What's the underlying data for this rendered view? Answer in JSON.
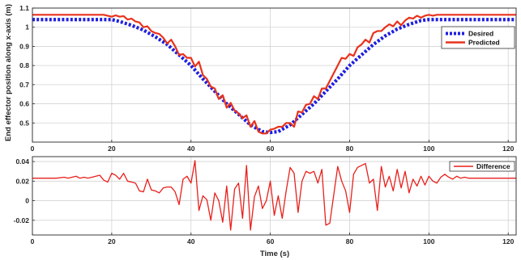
{
  "colors": {
    "desired": "#1f1fe0",
    "predicted": "#e8321c",
    "difference": "#e8201c",
    "grid": "#d2d2d2",
    "axis": "#262626",
    "background": "#ffffff"
  },
  "chart_data": [
    {
      "type": "line",
      "title": "",
      "xlabel": "",
      "ylabel": "End effector position along x-axis (m)",
      "xlim": [
        0,
        122
      ],
      "ylim": [
        0.4,
        1.1
      ],
      "xticks": [
        0,
        20,
        40,
        60,
        80,
        100,
        120
      ],
      "yticks": [
        0.5,
        0.6,
        0.7,
        0.8,
        0.9,
        1,
        1.1
      ],
      "xtick_labels": [
        "0",
        "20",
        "40",
        "60",
        "80",
        "100",
        "120"
      ],
      "ytick_labels": [
        "0.5",
        "0.6",
        "0.7",
        "0.8",
        "0.9",
        "1",
        "1.1"
      ],
      "grid": true,
      "legend_position": "upper right",
      "series": [
        {
          "name": "Desired",
          "style": "dotted",
          "x": [
            0,
            10,
            20,
            22,
            25,
            28,
            31,
            34,
            37,
            40,
            43,
            46,
            49,
            52,
            55,
            58,
            60,
            62,
            65,
            68,
            71,
            74,
            77,
            80,
            83,
            86,
            89,
            92,
            95,
            98,
            100,
            110,
            122
          ],
          "y": [
            1.04,
            1.04,
            1.04,
            1.03,
            1.01,
            0.985,
            0.95,
            0.91,
            0.855,
            0.8,
            0.73,
            0.665,
            0.6,
            0.545,
            0.49,
            0.455,
            0.45,
            0.455,
            0.49,
            0.545,
            0.6,
            0.665,
            0.73,
            0.8,
            0.855,
            0.91,
            0.955,
            0.99,
            1.015,
            1.035,
            1.04,
            1.04,
            1.04
          ]
        },
        {
          "name": "Predicted",
          "style": "solid",
          "x": [
            0,
            5,
            10,
            15,
            18,
            20,
            21,
            22,
            23,
            24,
            25,
            26,
            27,
            28,
            29,
            30,
            31,
            32,
            33,
            34,
            35,
            36,
            37,
            38,
            39,
            40,
            41,
            42,
            43,
            44,
            45,
            46,
            47,
            48,
            49,
            50,
            51,
            52,
            53,
            54,
            55,
            56,
            57,
            58,
            59,
            60,
            61,
            62,
            63,
            64,
            65,
            66,
            67,
            68,
            69,
            70,
            71,
            72,
            73,
            74,
            75,
            76,
            77,
            78,
            79,
            80,
            81,
            82,
            83,
            84,
            85,
            86,
            87,
            88,
            89,
            90,
            91,
            92,
            93,
            94,
            95,
            96,
            97,
            98,
            99,
            100,
            101,
            102,
            105,
            110,
            115,
            122
          ],
          "y": [
            1.065,
            1.065,
            1.065,
            1.065,
            1.065,
            1.055,
            1.062,
            1.055,
            1.058,
            1.04,
            1.045,
            1.03,
            1.025,
            1.0,
            1.005,
            0.98,
            0.97,
            0.965,
            0.945,
            0.915,
            0.935,
            0.9,
            0.855,
            0.86,
            0.84,
            0.84,
            0.795,
            0.82,
            0.75,
            0.73,
            0.69,
            0.68,
            0.625,
            0.645,
            0.58,
            0.605,
            0.565,
            0.55,
            0.525,
            0.54,
            0.48,
            0.51,
            0.455,
            0.445,
            0.445,
            0.465,
            0.47,
            0.48,
            0.48,
            0.5,
            0.5,
            0.48,
            0.56,
            0.555,
            0.595,
            0.6,
            0.64,
            0.625,
            0.68,
            0.68,
            0.72,
            0.76,
            0.8,
            0.84,
            0.835,
            0.86,
            0.85,
            0.895,
            0.91,
            0.935,
            0.92,
            0.97,
            0.98,
            0.98,
            1.0,
            1.015,
            1.005,
            1.03,
            1.01,
            1.035,
            1.05,
            1.045,
            1.06,
            1.05,
            1.06,
            1.065,
            1.06,
            1.065,
            1.065,
            1.065,
            1.065,
            1.065
          ]
        }
      ]
    },
    {
      "type": "line",
      "title": "",
      "xlabel": "Time (s)",
      "ylabel": "",
      "xlim": [
        0,
        122
      ],
      "ylim": [
        -0.035,
        0.045
      ],
      "xticks": [
        0,
        20,
        40,
        60,
        80,
        100,
        120
      ],
      "yticks": [
        -0.02,
        0,
        0.02,
        0.04
      ],
      "xtick_labels": [
        "0",
        "20",
        "40",
        "60",
        "80",
        "100",
        "120"
      ],
      "ytick_labels": [
        "-0.02",
        "0",
        "0.02",
        "0.04"
      ],
      "grid": true,
      "legend_position": "upper right",
      "series": [
        {
          "name": "Difference",
          "style": "solid",
          "x": [
            0,
            3,
            6,
            8,
            9,
            10,
            11,
            12,
            13,
            14,
            15,
            16,
            17,
            18,
            19,
            20,
            21,
            22,
            23,
            24,
            25,
            26,
            27,
            28,
            29,
            30,
            31,
            32,
            33,
            34,
            35,
            36,
            37,
            38,
            39,
            40,
            41,
            42,
            43,
            44,
            45,
            46,
            47,
            48,
            49,
            50,
            51,
            52,
            53,
            54,
            55,
            56,
            57,
            58,
            59,
            60,
            61,
            62,
            63,
            64,
            65,
            66,
            67,
            68,
            69,
            70,
            71,
            72,
            73,
            74,
            75,
            76,
            77,
            78,
            79,
            80,
            81,
            82,
            83,
            84,
            85,
            86,
            87,
            88,
            89,
            90,
            91,
            92,
            93,
            94,
            95,
            96,
            97,
            98,
            99,
            100,
            101,
            102,
            103,
            104,
            105,
            106,
            107,
            108,
            109,
            110,
            115,
            122
          ],
          "y": [
            0.023,
            0.023,
            0.023,
            0.024,
            0.023,
            0.024,
            0.025,
            0.023,
            0.024,
            0.023,
            0.024,
            0.025,
            0.026,
            0.021,
            0.019,
            0.028,
            0.026,
            0.022,
            0.028,
            0.02,
            0.019,
            0.018,
            0.01,
            0.009,
            0.022,
            0.011,
            0.01,
            0.008,
            0.013,
            0.014,
            0.014,
            0.009,
            -0.004,
            0.022,
            0.025,
            0.018,
            0.041,
            -0.01,
            0.005,
            0.001,
            -0.02,
            0.008,
            0.0,
            -0.022,
            0.015,
            -0.03,
            0.012,
            0.018,
            -0.018,
            0.036,
            -0.03,
            0.004,
            0.015,
            -0.008,
            0.0,
            0.02,
            -0.015,
            0.005,
            -0.018,
            0.01,
            0.034,
            0.028,
            -0.012,
            0.02,
            0.03,
            0.028,
            0.03,
            0.018,
            0.032,
            -0.025,
            -0.023,
            0.006,
            0.035,
            0.02,
            0.01,
            -0.012,
            0.027,
            0.034,
            0.036,
            0.038,
            0.018,
            0.022,
            -0.01,
            0.035,
            0.014,
            0.025,
            0.01,
            0.032,
            0.013,
            0.03,
            0.008,
            0.022,
            0.015,
            0.025,
            0.016,
            0.025,
            0.02,
            0.018,
            0.024,
            0.027,
            0.024,
            0.022,
            0.025,
            0.023,
            0.024,
            0.023,
            0.023,
            0.023
          ]
        }
      ]
    }
  ]
}
